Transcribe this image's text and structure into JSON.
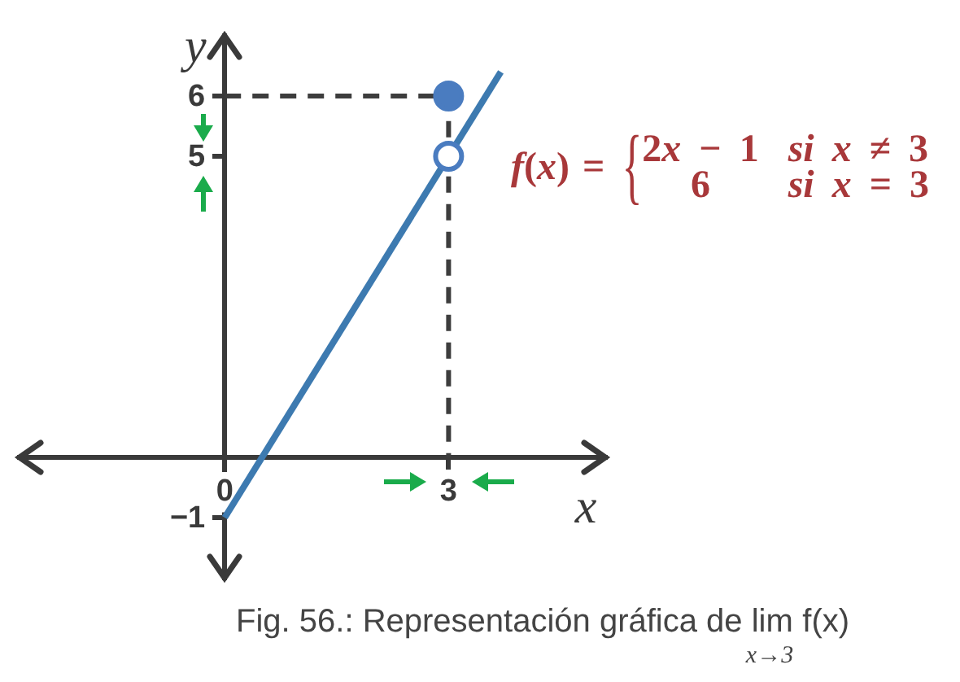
{
  "chart_data": {
    "type": "line",
    "annotations": [
      "f(x) = {2x − 1\tsi x ≠ 3\n6\tsi x = 3",
      "Fig. 56.: Representación gráfica de lim$_{x→3}$ f(x)"
    ],
    "xlabel": "x",
    "ylabel": "y",
    "xlim": [
      -2.75,
      5.1
    ],
    "ylim": [
      -2,
      7
    ],
    "xticks": [
      0,
      3
    ],
    "yticks": [
      {
        "value": -1,
        "label": "−1"
      },
      5,
      6
    ],
    "series": [
      {
        "type": "line",
        "x": [
          0,
          3,
          3
        ],
        "values": [
          6,
          6,
          0
        ],
        "color": "#3d3d3d",
        "line_style": "dashed",
        "marker": "none"
      },
      {
        "type": "line",
        "x": [
          0,
          3.7
        ],
        "values": [
          -1,
          6.4
        ],
        "color": "#3d7ab0",
        "line_style": "solid",
        "marker": "none"
      },
      {
        "type": "scatter",
        "x": [
          3
        ],
        "values": [
          6
        ],
        "color": "#4a7cc0",
        "marker": "circle"
      },
      {
        "type": "scatter",
        "x": [
          3
        ],
        "values": [
          5
        ],
        "color": "#4a7cc0",
        "colors": [
          "#ffffff"
        ],
        "marker": "circle"
      }
    ]
  }
}
